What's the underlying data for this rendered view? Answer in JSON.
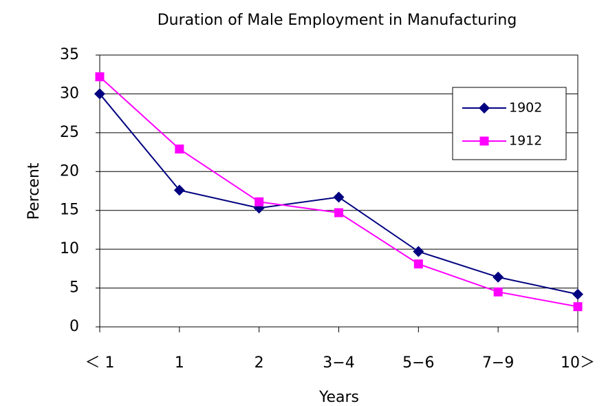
{
  "chart_data": {
    "type": "line",
    "title": "Duration of Male Employment in Manufacturing",
    "x_label": "Years",
    "y_label": "Percent",
    "categories": [
      "＜ 1",
      "1",
      "2",
      "3−4",
      "5−6",
      "7−9",
      "10＞"
    ],
    "series": [
      {
        "name": "1902",
        "color": "#000080",
        "marker": "diamond",
        "values": [
          30,
          17.6,
          15.3,
          16.7,
          9.7,
          6.4,
          4.2
        ]
      },
      {
        "name": "1912",
        "color": "#ff00ff",
        "marker": "square",
        "values": [
          32.2,
          22.9,
          16.1,
          14.7,
          8.1,
          4.5,
          2.6
        ]
      }
    ],
    "ylim": [
      0,
      35
    ],
    "yticks": [
      0,
      5,
      10,
      15,
      20,
      25,
      30,
      35
    ],
    "grid": true,
    "legend": "upper right"
  }
}
